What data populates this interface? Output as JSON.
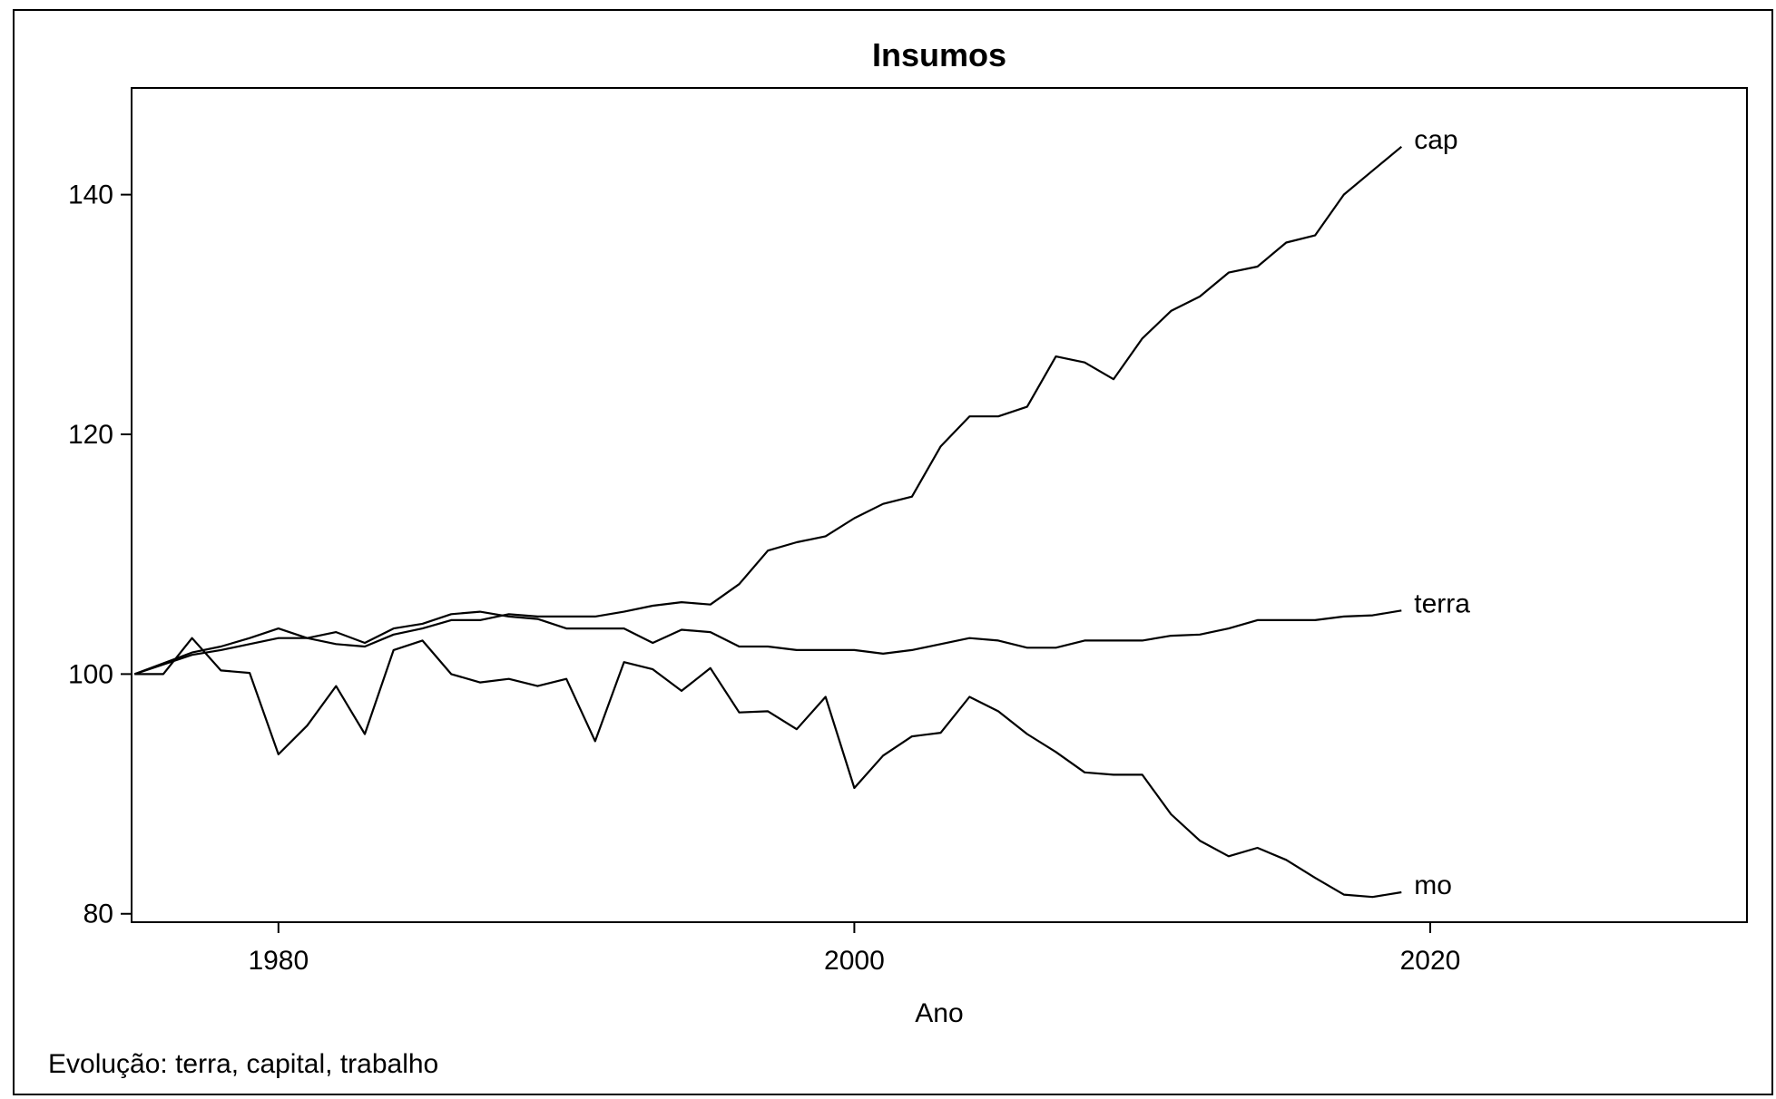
{
  "chart_data": {
    "type": "line",
    "title": "Insumos",
    "xlabel": "Ano",
    "ylabel": "",
    "footnote": "Evolução: terra, capital, trabalho",
    "xlim": [
      1974.9,
      2031
    ],
    "ylim": [
      79.3,
      148.9
    ],
    "xticks": [
      1980,
      2000,
      2020
    ],
    "yticks": [
      80,
      100,
      120,
      140
    ],
    "grid": false,
    "legend": "none",
    "line_color": "#000000",
    "x": [
      1975,
      1976,
      1977,
      1978,
      1979,
      1980,
      1981,
      1982,
      1983,
      1984,
      1985,
      1986,
      1987,
      1988,
      1989,
      1990,
      1991,
      1992,
      1993,
      1994,
      1995,
      1996,
      1997,
      1998,
      1999,
      2000,
      2001,
      2002,
      2003,
      2004,
      2005,
      2006,
      2007,
      2008,
      2009,
      2010,
      2011,
      2012,
      2013,
      2014,
      2015,
      2016,
      2017,
      2018,
      2019
    ],
    "series": [
      {
        "name": "cap",
        "values": [
          100.0,
          100.8,
          101.6,
          102.0,
          102.5,
          103.0,
          103.0,
          102.5,
          102.3,
          103.3,
          103.8,
          104.5,
          104.5,
          105.0,
          104.8,
          104.8,
          104.8,
          105.2,
          105.7,
          106.0,
          105.8,
          107.5,
          110.3,
          111.0,
          111.5,
          113.0,
          114.2,
          114.8,
          119.0,
          121.5,
          121.5,
          122.3,
          126.5,
          126.0,
          124.6,
          128.0,
          130.3,
          131.5,
          133.5,
          134.0,
          136.0,
          136.6,
          140.0,
          142.0,
          144.0
        ]
      },
      {
        "name": "terra",
        "values": [
          100.0,
          100.9,
          101.8,
          102.3,
          103.0,
          103.8,
          103.0,
          103.5,
          102.6,
          103.8,
          104.2,
          105.0,
          105.2,
          104.8,
          104.6,
          103.8,
          103.8,
          103.8,
          102.6,
          103.7,
          103.5,
          102.3,
          102.3,
          102.0,
          102.0,
          102.0,
          101.7,
          102.0,
          102.5,
          103.0,
          102.8,
          102.2,
          102.2,
          102.8,
          102.8,
          102.8,
          103.2,
          103.3,
          103.8,
          104.5,
          104.5,
          104.5,
          104.8,
          104.9,
          105.3
        ]
      },
      {
        "name": "mo",
        "values": [
          100.0,
          100.0,
          103.0,
          100.3,
          100.1,
          93.3,
          95.7,
          99.0,
          95.0,
          102.0,
          102.8,
          100.0,
          99.3,
          99.6,
          99.0,
          99.6,
          94.4,
          101.0,
          100.4,
          98.6,
          100.5,
          96.8,
          96.9,
          95.4,
          98.1,
          90.5,
          93.2,
          94.8,
          95.1,
          98.1,
          96.9,
          95.0,
          93.5,
          91.8,
          91.6,
          91.6,
          88.3,
          86.1,
          84.8,
          85.5,
          84.5,
          83.0,
          81.6,
          81.4,
          81.8
        ]
      }
    ]
  }
}
